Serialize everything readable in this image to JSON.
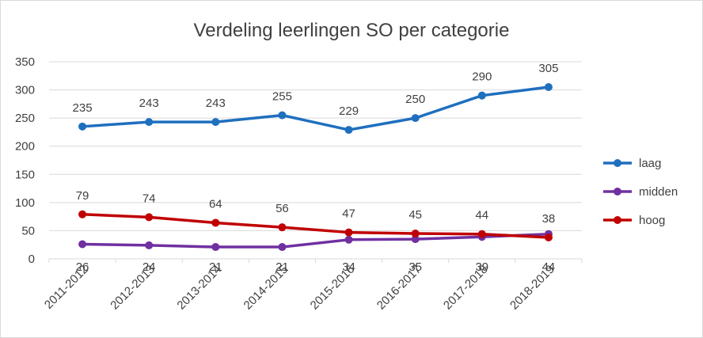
{
  "chart_data": {
    "type": "line",
    "title": "Verdeling leerlingen SO per categorie",
    "xlabel": "",
    "ylabel": "",
    "categories": [
      "2011-2012",
      "2012-2013",
      "2013-2014",
      "2014-2015",
      "2015-2016",
      "2016-2017",
      "2017-2018",
      "2018-2019"
    ],
    "ylim": [
      0,
      350
    ],
    "yticks": [
      0,
      50,
      100,
      150,
      200,
      250,
      300,
      350
    ],
    "grid": true,
    "legend_position": "right",
    "series": [
      {
        "name": "laag",
        "color": "#1f6fbf",
        "values": [
          235,
          243,
          243,
          255,
          229,
          250,
          290,
          305
        ]
      },
      {
        "name": "midden",
        "color": "#7030a0",
        "values": [
          26,
          24,
          21,
          21,
          34,
          35,
          39,
          44
        ]
      },
      {
        "name": "hoog",
        "color": "#c00000",
        "values": [
          79,
          74,
          64,
          56,
          47,
          45,
          44,
          38
        ]
      }
    ]
  }
}
